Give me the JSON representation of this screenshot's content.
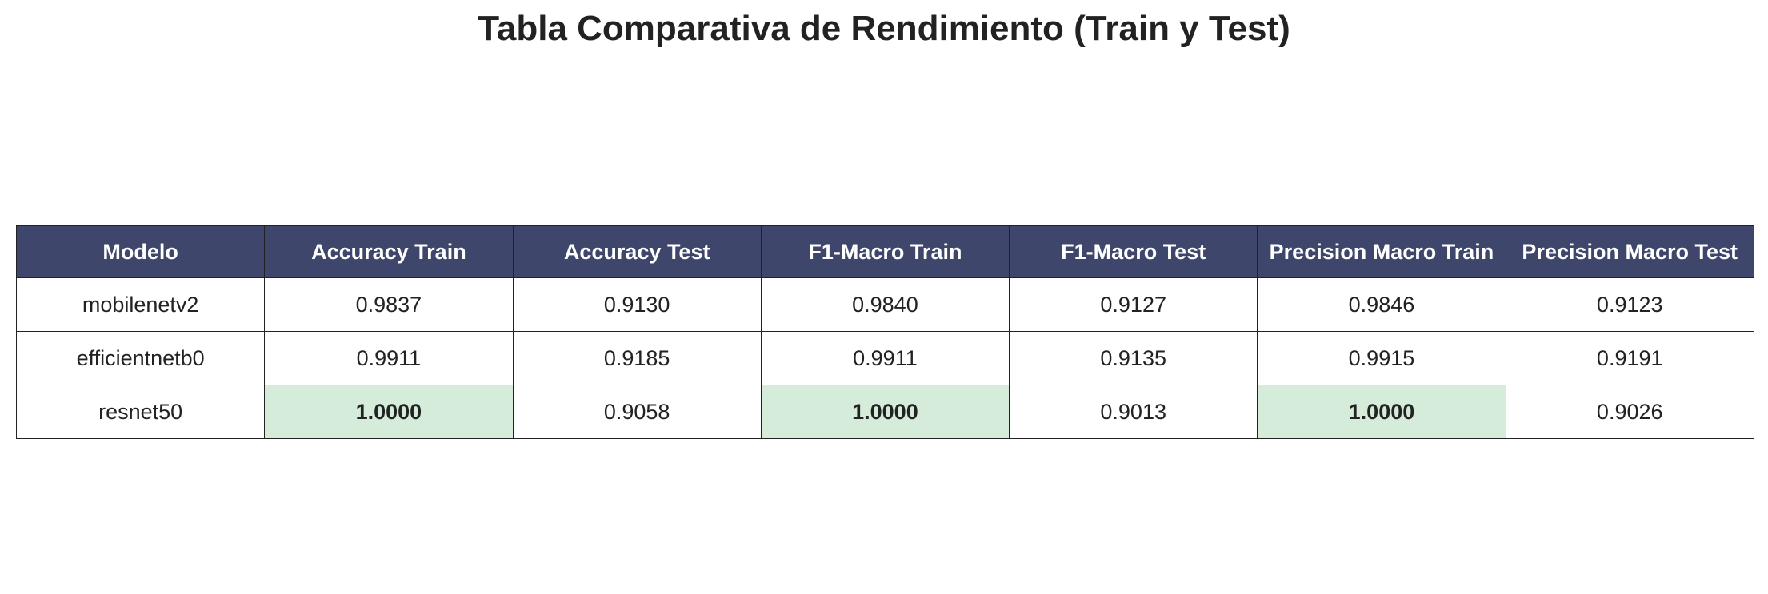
{
  "chart_data": {
    "type": "table",
    "title": "Tabla Comparativa de Rendimiento (Train y Test)",
    "columns": [
      "Modelo",
      "Accuracy Train",
      "Accuracy Test",
      "F1-Macro Train",
      "F1-Macro Test",
      "Precision Macro Train",
      "Precision Macro Test"
    ],
    "rows": [
      [
        "mobilenetv2",
        "0.9837",
        "0.9130",
        "0.9840",
        "0.9127",
        "0.9846",
        "0.9123"
      ],
      [
        "efficientnetb0",
        "0.9911",
        "0.9185",
        "0.9911",
        "0.9135",
        "0.9915",
        "0.9191"
      ],
      [
        "resnet50",
        "1.0000",
        "0.9058",
        "1.0000",
        "0.9013",
        "1.0000",
        "0.9026"
      ]
    ],
    "highlighted_cells": [
      [
        2,
        1
      ],
      [
        2,
        3
      ],
      [
        2,
        5
      ]
    ]
  },
  "colors": {
    "header_bg": "#3f466b",
    "header_text": "#ffffff",
    "highlight_bg": "#d4ecd9",
    "border": "#222222"
  }
}
